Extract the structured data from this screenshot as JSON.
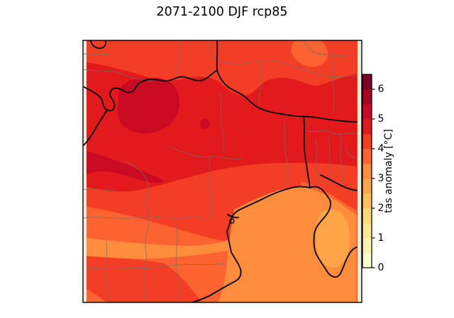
{
  "title": "2071-2100 DJF rcp85",
  "colorbar": {
    "label": "tas anomaly [°C]",
    "ticks": [
      "0",
      "1",
      "2",
      "3",
      "4",
      "5",
      "6"
    ],
    "vmin": 0,
    "vmax": 6.5,
    "step": 0.5,
    "colors": [
      "#ffffcc",
      "#fff3af",
      "#fee692",
      "#fed976",
      "#febf5a",
      "#fea647",
      "#fd8d3c",
      "#fc6330",
      "#f43d25",
      "#e31a1c",
      "#ca0923",
      "#a90026",
      "#800026"
    ]
  },
  "map": {
    "background_color": "#f0ecd9",
    "country_border_color": "#0a0a0a",
    "region_border_color": "#6e6e6e"
  },
  "chart_data": {
    "type": "heatmap",
    "title": "2071-2100 DJF rcp85",
    "description": "Filled-contour climate map (winter DJF temperature anomaly, scenario rcp85, period 2071-2100) over the Alps / Northern Italy / Adriatic region, with national (thick black) and sub-regional (thin grey) boundaries.",
    "colorbar_label": "tas anomaly [°C]",
    "colorbar_ticks": [
      0,
      1,
      2,
      3,
      4,
      5,
      6
    ],
    "contour_levels": [
      0,
      0.5,
      1,
      1.5,
      2,
      2.5,
      3,
      3.5,
      4,
      4.5,
      5,
      5.5,
      6,
      6.5
    ],
    "level_colors": [
      "#ffffcc",
      "#fff3af",
      "#fee692",
      "#fed976",
      "#febf5a",
      "#fea647",
      "#fd8d3c",
      "#fc6330",
      "#f43d25",
      "#e31a1c",
      "#ca0923",
      "#a90026",
      "#800026"
    ],
    "legend_position": "right",
    "regions": [
      {
        "area": "main alpine belt (upper half, west-to-east)",
        "anomaly_c": "4.5-5.0"
      },
      {
        "area": "local maxima in west-central Alps and west edge band",
        "anomaly_c": "5.0-5.5"
      },
      {
        "area": "land surrounding the alpine belt (north rim, east, Po plain north)",
        "anomaly_c": "4.0-4.5"
      },
      {
        "area": "lower south-west band and north-east pre-Adriatic strip",
        "anomaly_c": "3.5-4.0"
      },
      {
        "area": "Adriatic sea / Gulf of Venice and coastal south-east",
        "anomaly_c": "2.5-3.0"
      },
      {
        "area": "Istria interior patch",
        "anomaly_c": "2.0-2.5"
      },
      {
        "area": "small blob at top-right edge",
        "anomaly_c": "3.5-4.0"
      }
    ]
  }
}
